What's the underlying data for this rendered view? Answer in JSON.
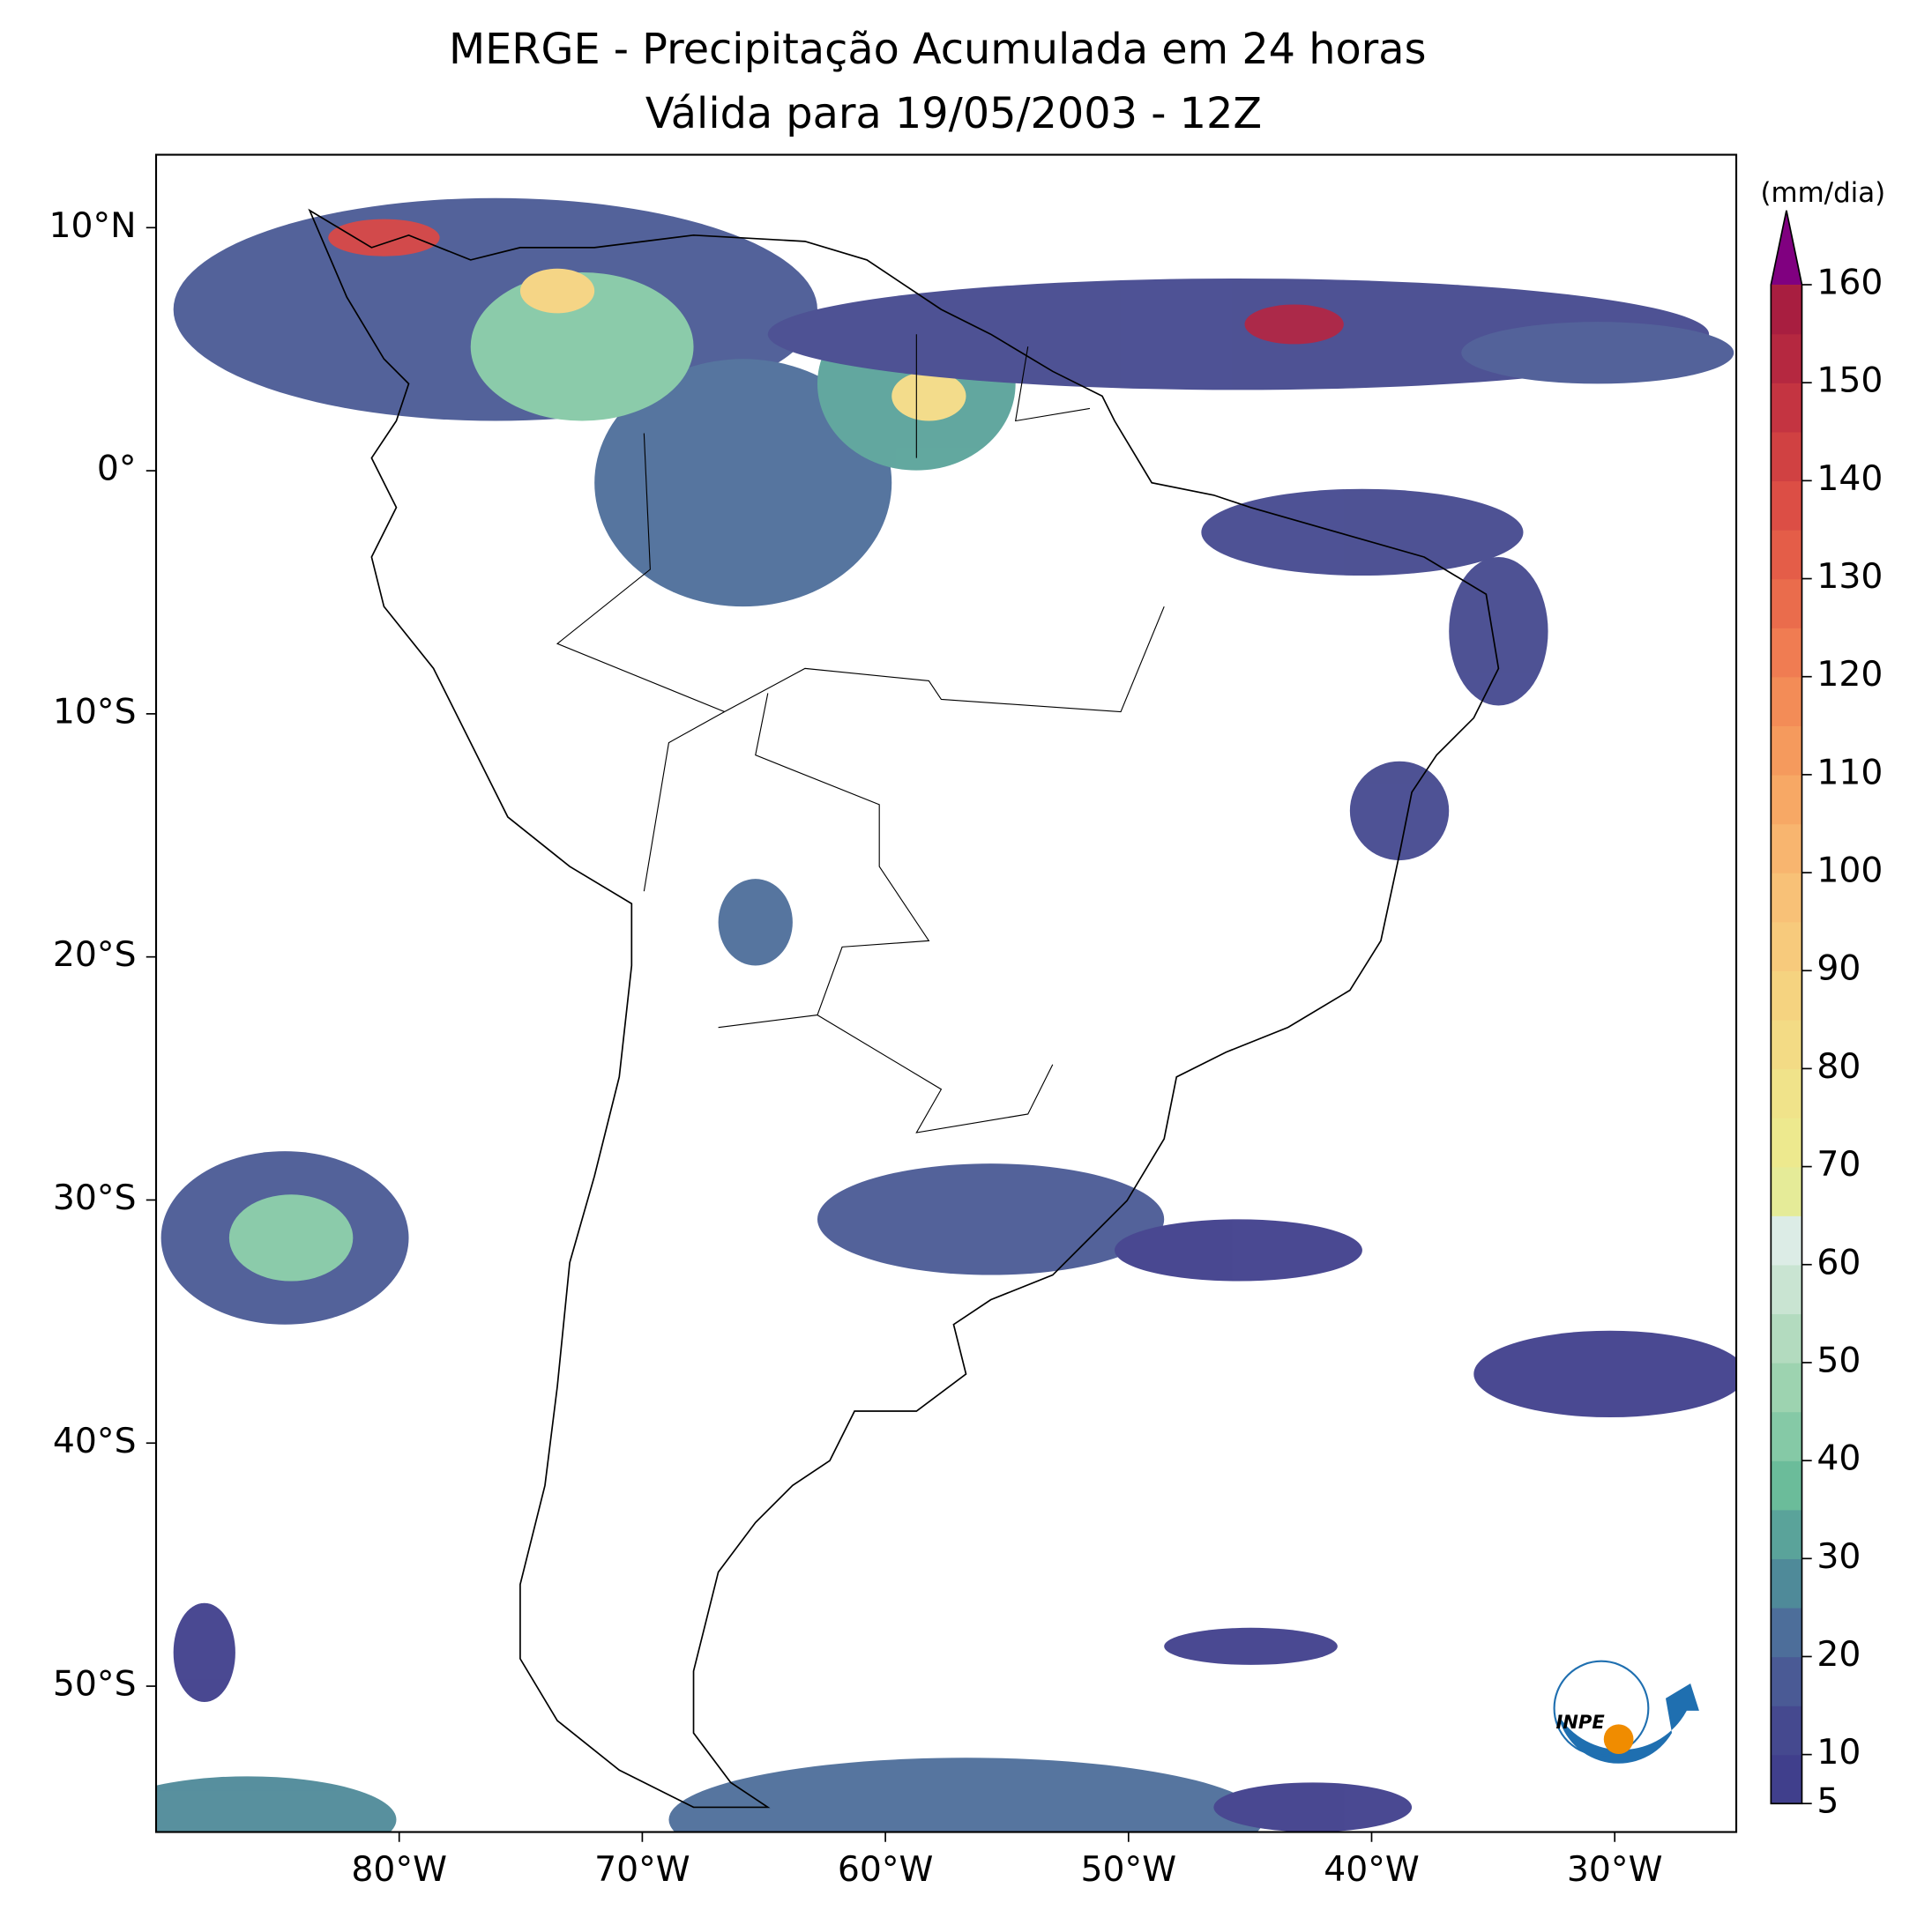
{
  "title": [
    "MERGE - Precipitação Acumulada em 24 horas",
    "Válida para 19/05/2003 - 12Z"
  ],
  "lon_lim": [
    -90,
    -25
  ],
  "lat_lim": [
    -56,
    13
  ],
  "lon_ticks": [
    {
      "value": -80,
      "label": "80°W"
    },
    {
      "value": -70,
      "label": "70°W"
    },
    {
      "value": -60,
      "label": "60°W"
    },
    {
      "value": -50,
      "label": "50°W"
    },
    {
      "value": -40,
      "label": "40°W"
    },
    {
      "value": -30,
      "label": "30°W"
    }
  ],
  "lat_ticks": [
    {
      "value": 10,
      "label": "10°N"
    },
    {
      "value": 0,
      "label": "0°"
    },
    {
      "value": -10,
      "label": "10°S"
    },
    {
      "value": -20,
      "label": "20°S"
    },
    {
      "value": -30,
      "label": "30°S"
    },
    {
      "value": -40,
      "label": "40°S"
    },
    {
      "value": -50,
      "label": "50°S"
    }
  ],
  "colorbar": {
    "unit": "(mm/dia)",
    "lim": [
      5,
      160
    ],
    "ticks": [
      5,
      10,
      20,
      30,
      40,
      50,
      60,
      70,
      80,
      90,
      100,
      110,
      120,
      130,
      140,
      150,
      160
    ],
    "colors": [
      "#403f8c",
      "#45498f",
      "#4a5a95",
      "#4d6e9a",
      "#4f8a99",
      "#5aa39a",
      "#6bbc9a",
      "#85c9a6",
      "#9dd3b0",
      "#b3dbbf",
      "#c9e4d2",
      "#dcece6",
      "#e5eb98",
      "#ede98e",
      "#f0e38a",
      "#f3db85",
      "#f5d380",
      "#f7ca7c",
      "#f8c177",
      "#f8b56f",
      "#f7a865",
      "#f59a5d",
      "#f38c57",
      "#f07c52",
      "#ea6c4c",
      "#e45d48",
      "#dc4e45",
      "#d04142",
      "#c43441",
      "#b52840",
      "#a81e40"
    ],
    "extend_color": "#800080"
  },
  "logo": "INPE"
}
